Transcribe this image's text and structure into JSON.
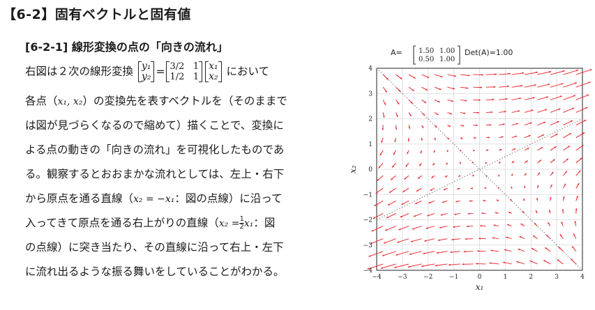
{
  "title": "【6-2】固有ベクトルと固有値",
  "subtitle": "[6-2-1] 線形変換の点の「向きの流れ」",
  "para": {
    "l1a": "右図は２次の線形変換",
    "l1b": "において",
    "l2a": "各点（",
    "l2b": "）の変換先を表すベクトルを（そのままで",
    "l3": "は図が見づらくなるので縮めて）描くことで、変換に",
    "l4": "よる点の動きの「向きの流れ」を可視化したものであ",
    "l5": "る。観察するとおおまかな流れとしては、左上・右下",
    "l6a": "から原点を通る直線（",
    "l6b": "：図の点線）に沿って",
    "l7a": "入ってきて原点を通る右上がりの直線（",
    "l7b": "：図",
    "l8": "の点線）に突き当たり、その直線に沿って右上・左下",
    "l9": "に流れ出るような振る舞いをしていることがわかる。"
  },
  "math": {
    "y1": "y₁",
    "y2": "y₂",
    "x1": "x₁",
    "x2": "x₂",
    "m11": "3/2",
    "m12": "1",
    "m21": "1/2",
    "m22": "1",
    "eq": "=",
    "pt": "x₁, x₂",
    "line1": "x₂ = −x₁",
    "line2a": "x₂ =",
    "half_num": "1",
    "half_den": "2",
    "line2b": "x₁"
  },
  "chart_data": {
    "type": "quiver",
    "title_prefix": "A=",
    "matrix": [
      [
        "1.50",
        "1.00"
      ],
      [
        "0.50",
        "1.00"
      ]
    ],
    "det_label": "Det(A)=1.00",
    "A": [
      [
        1.5,
        1.0
      ],
      [
        0.5,
        1.0
      ]
    ],
    "xlabel": "x₁",
    "ylabel": "x₂",
    "xlim": [
      -4,
      4
    ],
    "ylim": [
      -4,
      4
    ],
    "xticks": [
      "−4",
      "−3",
      "−2",
      "−1",
      "0",
      "1",
      "2",
      "3",
      "4"
    ],
    "yticks": [
      "4",
      "3",
      "2",
      "1",
      "0",
      "−1",
      "−2",
      "−3",
      "−4"
    ],
    "grid": true,
    "arrow_color": "#e8272d",
    "eigen_lines": [
      {
        "slope": 0.5
      },
      {
        "slope": -1
      }
    ]
  }
}
